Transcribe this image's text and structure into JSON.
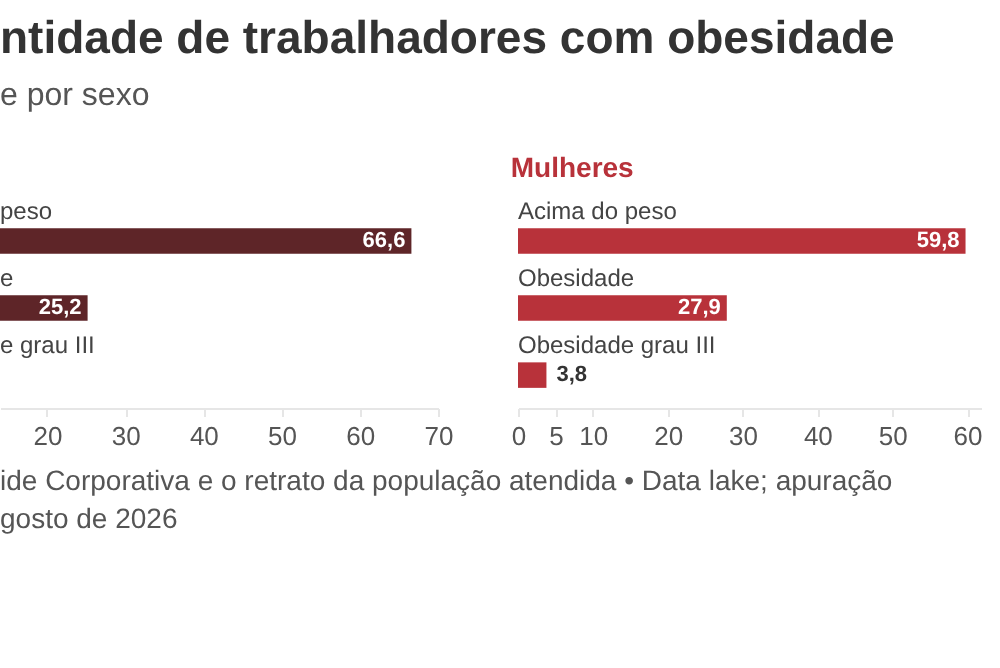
{
  "chart_data": [
    {
      "type": "bar",
      "orientation": "horizontal",
      "title": "ntidade de trabalhadores com obesidade",
      "subtitle": "e por sexo",
      "categories": [
        "peso",
        "e",
        "e grau III"
      ],
      "series": [
        {
          "color": "#5e2528",
          "values": [
            66.6,
            25.2,
            null
          ],
          "value_labels": [
            "66,6",
            "25,2",
            null
          ]
        }
      ],
      "xlim": [
        14,
        70
      ],
      "xticks": [
        20,
        30,
        40,
        50,
        60,
        70
      ],
      "grid": false
    },
    {
      "type": "bar",
      "orientation": "horizontal",
      "title": "Mulheres",
      "categories": [
        "Acima do peso",
        "Obesidade",
        "Obesidade grau III"
      ],
      "series": [
        {
          "color": "#b8323a",
          "values": [
            59.8,
            27.9,
            3.8
          ],
          "value_labels": [
            "59,8",
            "27,9",
            "3,8"
          ]
        }
      ],
      "xlim": [
        0,
        62
      ],
      "xticks": [
        0,
        5,
        10,
        20,
        30,
        40,
        50,
        60
      ],
      "grid": false,
      "annotations": [
        "ide Corporativa e o retrato da população atendida • Data lake; apuração",
        "gosto de 2026"
      ]
    }
  ]
}
